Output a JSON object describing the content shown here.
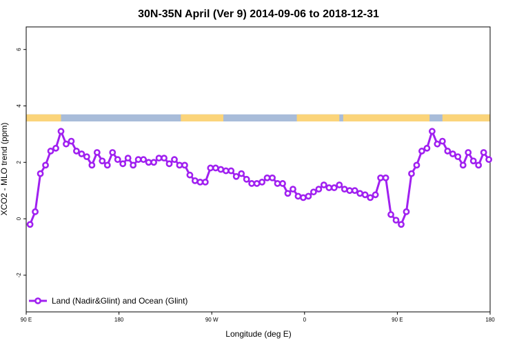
{
  "chart_data": {
    "type": "line",
    "title": "30N-35N April (Ver 9)   2014-09-06 to 2018-12-31",
    "xlabel": "Longitude (deg E)",
    "ylabel": "XCO2 - MLO trend (ppm)",
    "xlim": [
      0,
      360
    ],
    "ylim": [
      -3.3,
      6.8
    ],
    "x_ticks": [
      {
        "value": 0,
        "label": "90 E"
      },
      {
        "value": 72,
        "label": "180"
      },
      {
        "value": 144,
        "label": "90 W"
      },
      {
        "value": 216,
        "label": "0"
      },
      {
        "value": 288,
        "label": "90 E"
      },
      {
        "value": 360,
        "label": "180"
      }
    ],
    "y_ticks": [
      {
        "value": -2,
        "label": "-2"
      },
      {
        "value": 0,
        "label": "0"
      },
      {
        "value": 2,
        "label": "2"
      },
      {
        "value": 4,
        "label": "4"
      },
      {
        "value": 6,
        "label": "6"
      }
    ],
    "surface_band": {
      "y_range": [
        3.45,
        3.7
      ],
      "land_color": "#fbd47a",
      "ocean_color": "#a8bcd9",
      "land_segments": [
        [
          0,
          27
        ],
        [
          120,
          153
        ],
        [
          210,
          243
        ],
        [
          246,
          313
        ],
        [
          323,
          360
        ]
      ]
    },
    "series": [
      {
        "name": "Land (Nadir&Glint) and Ocean (Glint)",
        "color": "#a020f0",
        "x": [
          3,
          7,
          11,
          15,
          19,
          23,
          27,
          31,
          35,
          39,
          43,
          47,
          51,
          55,
          59,
          63,
          67,
          71,
          75,
          79,
          83,
          87,
          91,
          95,
          99,
          103,
          107,
          111,
          115,
          119,
          123,
          127,
          131,
          135,
          139,
          143,
          147,
          151,
          155,
          159,
          163,
          167,
          171,
          175,
          179,
          183,
          187,
          191,
          195,
          199,
          203,
          207,
          211,
          215,
          219,
          223,
          227,
          231,
          235,
          239,
          243,
          247,
          251,
          255,
          259,
          263,
          267,
          271,
          275,
          279,
          283,
          287,
          291,
          295,
          299,
          303,
          307,
          311,
          315,
          319,
          323,
          327,
          331,
          335,
          339,
          343,
          347,
          351,
          355,
          359
        ],
        "y": [
          -0.2,
          0.25,
          1.6,
          1.9,
          2.4,
          2.5,
          3.1,
          2.65,
          2.75,
          2.4,
          2.3,
          2.2,
          1.9,
          2.35,
          2.05,
          1.9,
          2.35,
          2.1,
          1.95,
          2.15,
          1.9,
          2.1,
          2.1,
          2.0,
          2.0,
          2.15,
          2.15,
          1.95,
          2.1,
          1.9,
          1.9,
          1.55,
          1.35,
          1.3,
          1.3,
          1.8,
          1.8,
          1.75,
          1.7,
          1.7,
          1.5,
          1.6,
          1.4,
          1.25,
          1.25,
          1.3,
          1.45,
          1.45,
          1.25,
          1.25,
          0.9,
          1.05,
          0.8,
          0.75,
          0.8,
          0.95,
          1.05,
          1.2,
          1.1,
          1.1,
          1.2,
          1.05,
          1.0,
          1.0,
          0.9,
          0.85,
          0.75,
          0.85,
          1.45,
          1.45,
          0.15,
          -0.05,
          -0.2,
          0.25,
          1.6,
          1.9,
          2.4,
          2.5,
          3.1,
          2.65,
          2.75,
          2.4,
          2.3,
          2.2,
          1.9,
          2.35,
          2.05,
          1.9,
          2.35,
          2.1
        ]
      }
    ],
    "legend_position": "bottom-left",
    "grid": false
  }
}
